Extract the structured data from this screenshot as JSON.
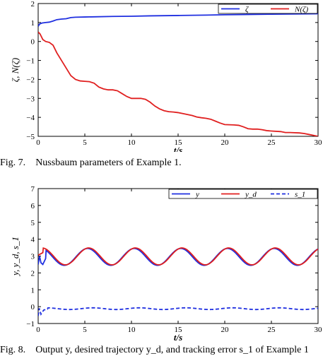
{
  "chart_data": [
    {
      "type": "line",
      "caption_label": "Fig. 7.",
      "caption_text": "Nussbaum parameters of Example 1.",
      "xlabel": "t/s",
      "ylabel": "ζ, N(ζ)",
      "xlim": [
        0,
        30
      ],
      "ylim": [
        -5,
        2
      ],
      "xticks": [
        "0",
        "5",
        "10",
        "15",
        "20",
        "25",
        "30"
      ],
      "yticks": [
        "2",
        "1",
        "0",
        "−1",
        "−2",
        "−3",
        "−4",
        "−5"
      ],
      "grid": false,
      "legend_position": "top-right",
      "series": [
        {
          "name": "ζ",
          "color": "#1f2fe0",
          "dash": "solid",
          "points": [
            [
              0,
              0.8
            ],
            [
              0.15,
              0.92
            ],
            [
              0.4,
              0.97
            ],
            [
              0.8,
              1.0
            ],
            [
              1.2,
              1.02
            ],
            [
              1.6,
              1.08
            ],
            [
              2.0,
              1.15
            ],
            [
              2.5,
              1.18
            ],
            [
              3.0,
              1.2
            ],
            [
              3.5,
              1.26
            ],
            [
              4.0,
              1.28
            ],
            [
              5,
              1.29
            ],
            [
              6,
              1.3
            ],
            [
              8,
              1.32
            ],
            [
              10,
              1.33
            ],
            [
              12,
              1.35
            ],
            [
              15,
              1.37
            ],
            [
              18,
              1.39
            ],
            [
              20,
              1.41
            ],
            [
              22,
              1.42
            ],
            [
              25,
              1.44
            ],
            [
              28,
              1.45
            ],
            [
              30,
              1.46
            ]
          ]
        },
        {
          "name": "N(ζ)",
          "color": "#e01f1f",
          "dash": "solid",
          "points": [
            [
              0,
              0.5
            ],
            [
              0.2,
              0.4
            ],
            [
              0.5,
              0.1
            ],
            [
              0.8,
              0.0
            ],
            [
              1.2,
              -0.05
            ],
            [
              1.6,
              -0.2
            ],
            [
              2.0,
              -0.6
            ],
            [
              2.5,
              -1.0
            ],
            [
              3.0,
              -1.4
            ],
            [
              3.5,
              -1.8
            ],
            [
              4.0,
              -2.0
            ],
            [
              4.5,
              -2.08
            ],
            [
              5.0,
              -2.1
            ],
            [
              5.5,
              -2.12
            ],
            [
              6.0,
              -2.2
            ],
            [
              6.5,
              -2.4
            ],
            [
              7.0,
              -2.5
            ],
            [
              7.5,
              -2.55
            ],
            [
              8.0,
              -2.55
            ],
            [
              8.5,
              -2.6
            ],
            [
              9.0,
              -2.75
            ],
            [
              9.5,
              -2.9
            ],
            [
              10.0,
              -3.0
            ],
            [
              11.0,
              -3.0
            ],
            [
              11.5,
              -3.05
            ],
            [
              12.0,
              -3.2
            ],
            [
              12.5,
              -3.4
            ],
            [
              13.0,
              -3.55
            ],
            [
              13.5,
              -3.65
            ],
            [
              14.0,
              -3.7
            ],
            [
              14.5,
              -3.72
            ],
            [
              15.0,
              -3.75
            ],
            [
              15.5,
              -3.8
            ],
            [
              16.0,
              -3.85
            ],
            [
              16.5,
              -3.9
            ],
            [
              17.0,
              -3.98
            ],
            [
              17.5,
              -4.02
            ],
            [
              18.0,
              -4.05
            ],
            [
              18.5,
              -4.1
            ],
            [
              19.0,
              -4.2
            ],
            [
              19.5,
              -4.3
            ],
            [
              20.0,
              -4.38
            ],
            [
              21.0,
              -4.4
            ],
            [
              21.5,
              -4.42
            ],
            [
              22.0,
              -4.5
            ],
            [
              22.5,
              -4.6
            ],
            [
              23.0,
              -4.62
            ],
            [
              23.5,
              -4.62
            ],
            [
              24.0,
              -4.65
            ],
            [
              24.5,
              -4.7
            ],
            [
              25.0,
              -4.72
            ],
            [
              26.0,
              -4.75
            ],
            [
              26.5,
              -4.8
            ],
            [
              27.0,
              -4.8
            ],
            [
              28.0,
              -4.82
            ],
            [
              28.5,
              -4.85
            ],
            [
              29.0,
              -4.9
            ],
            [
              29.5,
              -4.95
            ],
            [
              30.0,
              -5.0
            ]
          ]
        }
      ]
    },
    {
      "type": "line",
      "caption_label": "Fig. 8.",
      "caption_text": "Output y, desired trajectory y_d, and tracking error s_1 of Example 1",
      "xlabel": "t/s",
      "ylabel": "y, y_d, s_1",
      "xlim": [
        0,
        30
      ],
      "ylim": [
        -1,
        7
      ],
      "xticks": [
        "0",
        "5",
        "10",
        "15",
        "20",
        "25",
        "30"
      ],
      "yticks": [
        "7",
        "6",
        "5",
        "4",
        "3",
        "2",
        "1",
        "0",
        "−1"
      ],
      "grid": false,
      "legend_position": "top-right",
      "series": [
        {
          "name": "y",
          "color": "#1f2fe0",
          "dash": "solid",
          "function": {
            "kind": "sine",
            "offset": 2.95,
            "amplitude": 0.5,
            "period": 5.0,
            "phase": 1.2,
            "early": [
              [
                0,
                2.5
              ],
              [
                0.15,
                3.0
              ],
              [
                0.3,
                2.6
              ],
              [
                0.5,
                2.5
              ],
              [
                0.8,
                2.85
              ]
            ]
          }
        },
        {
          "name": "y_d",
          "color": "#e01f1f",
          "dash": "solid",
          "function": {
            "kind": "sine",
            "offset": 2.98,
            "amplitude": 0.5,
            "period": 5.0,
            "phase": 1.05,
            "early": [
              [
                0,
                3.05
              ],
              [
                0.5,
                3.2
              ]
            ]
          }
        },
        {
          "name": "s_1",
          "color": "#1f2fe0",
          "dash": "dashed",
          "function": {
            "kind": "sine",
            "offset": -0.12,
            "amplitude": 0.05,
            "period": 5.0,
            "phase": 0.5,
            "early": [
              [
                0,
                -0.55
              ],
              [
                0.12,
                -0.1
              ],
              [
                0.3,
                -0.45
              ],
              [
                0.6,
                -0.2
              ],
              [
                1.0,
                -0.15
              ]
            ]
          }
        }
      ]
    }
  ]
}
